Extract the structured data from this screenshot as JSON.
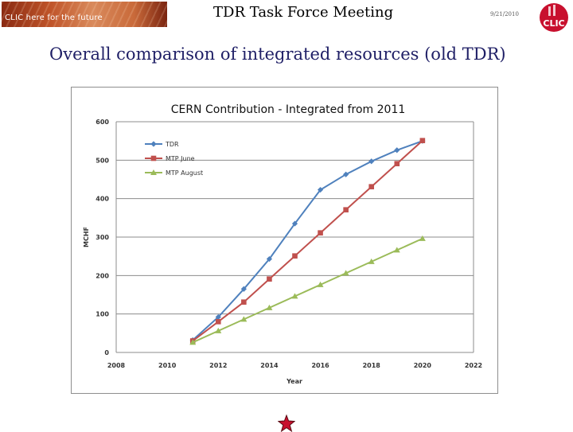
{
  "header": {
    "logo_text": "CLIC here for the future",
    "title": "TDR Task Force Meeting",
    "date": "9/21/2010",
    "clic_logo_text": "CLIC"
  },
  "slide": {
    "title": "Overall comparison of integrated resources (old TDR)"
  },
  "colors": {
    "title_text": "#1f1f66",
    "tdr": "#4f81bd",
    "mtp_june": "#c0504d",
    "mtp_august": "#9bbb59",
    "clic_red": "#c8102e"
  },
  "chart_data": {
    "type": "line",
    "title": "CERN Contribution - Integrated from 2011",
    "xlabel": "Year",
    "ylabel": "MCHF",
    "xlim": [
      2008,
      2022
    ],
    "ylim": [
      0,
      600
    ],
    "x_ticks": [
      2008,
      2010,
      2012,
      2014,
      2016,
      2018,
      2020,
      2022
    ],
    "y_ticks": [
      0,
      100,
      200,
      300,
      400,
      500,
      600
    ],
    "grid": "horizontal",
    "legend_position": "top-left",
    "series": [
      {
        "name": "TDR",
        "marker": "diamond",
        "color": "#4f81bd",
        "x": [
          2011,
          2012,
          2013,
          2014,
          2015,
          2016,
          2017,
          2018,
          2019,
          2020
        ],
        "y": [
          32,
          92,
          165,
          243,
          335,
          423,
          463,
          497,
          526,
          550
        ]
      },
      {
        "name": "MTP June",
        "marker": "square",
        "color": "#c0504d",
        "x": [
          2011,
          2012,
          2013,
          2014,
          2015,
          2016,
          2017,
          2018,
          2019,
          2020
        ],
        "y": [
          30,
          80,
          131,
          191,
          251,
          311,
          371,
          431,
          491,
          551
        ]
      },
      {
        "name": "MTP August",
        "marker": "triangle",
        "color": "#9bbb59",
        "x": [
          2011,
          2012,
          2013,
          2014,
          2015,
          2016,
          2017,
          2018,
          2019,
          2020
        ],
        "y": [
          26,
          56,
          86,
          116,
          146,
          176,
          206,
          236,
          266,
          296
        ]
      }
    ]
  }
}
